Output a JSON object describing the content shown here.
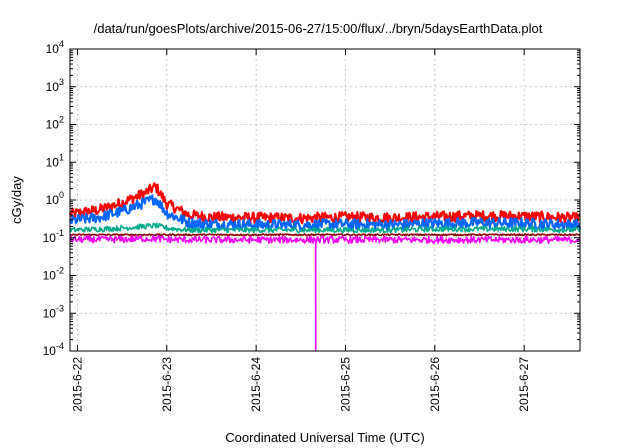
{
  "chart_data": {
    "type": "line",
    "title": "/data/run/goesPlots/archive/2015-06-27/15:00/flux/../bryn/5daysEarthData.plot",
    "xlabel": "Coordinated Universal Time (UTC)",
    "ylabel": "cGy/day",
    "y_scale": "log",
    "ylim": [
      0.0001,
      10000
    ],
    "xlim": [
      "2015-06-21 22:00",
      "2015-06-27 15:00"
    ],
    "x_ticks": [
      "2015-6-22",
      "2015-6-23",
      "2015-6-24",
      "2015-6-25",
      "2015-6-26",
      "2015-6-27"
    ],
    "y_ticks": [
      {
        "base": "10",
        "exp": "-4"
      },
      {
        "base": "10",
        "exp": "-3"
      },
      {
        "base": "10",
        "exp": "-2"
      },
      {
        "base": "10",
        "exp": "-1"
      },
      {
        "base": "10",
        "exp": "0"
      },
      {
        "base": "10",
        "exp": "1"
      },
      {
        "base": "10",
        "exp": "2"
      },
      {
        "base": "10",
        "exp": "3"
      },
      {
        "base": "10",
        "exp": "4"
      }
    ],
    "grid": true,
    "legend": "none",
    "x": [
      "2015-06-21 22:00",
      "2015-06-22 06:00",
      "2015-06-22 12:00",
      "2015-06-22 18:00",
      "2015-06-22 21:00",
      "2015-06-23 00:00",
      "2015-06-23 06:00",
      "2015-06-23 12:00",
      "2015-06-24 00:00",
      "2015-06-24 12:00",
      "2015-06-25 00:00",
      "2015-06-25 12:00",
      "2015-06-26 00:00",
      "2015-06-26 12:00",
      "2015-06-27 00:00",
      "2015-06-27 15:00"
    ],
    "series": [
      {
        "color": "#ff0000",
        "values": [
          0.42,
          0.55,
          0.85,
          1.5,
          2.3,
          0.8,
          0.4,
          0.35,
          0.34,
          0.33,
          0.35,
          0.34,
          0.36,
          0.38,
          0.37,
          0.33
        ]
      },
      {
        "color": "#0066ff",
        "values": [
          0.28,
          0.35,
          0.5,
          0.85,
          1.1,
          0.45,
          0.25,
          0.23,
          0.22,
          0.22,
          0.23,
          0.22,
          0.24,
          0.25,
          0.24,
          0.22
        ]
      },
      {
        "color": "#00aa88",
        "values": [
          0.16,
          0.17,
          0.18,
          0.2,
          0.21,
          0.18,
          0.16,
          0.16,
          0.16,
          0.16,
          0.16,
          0.16,
          0.17,
          0.17,
          0.17,
          0.16
        ]
      },
      {
        "color": "#8b0000",
        "values": [
          0.12,
          0.12,
          0.12,
          0.12,
          0.12,
          0.12,
          0.12,
          0.12,
          0.12,
          0.12,
          0.12,
          0.12,
          0.12,
          0.12,
          0.12,
          0.12
        ]
      },
      {
        "color": "#ff00ff",
        "values": [
          0.09,
          0.09,
          0.09,
          0.095,
          0.095,
          0.09,
          0.088,
          0.088,
          0.088,
          0.088,
          0.088,
          0.088,
          0.088,
          0.088,
          0.088,
          0.088
        ]
      }
    ],
    "annotations": [
      {
        "type": "dropout",
        "series": "#ff00ff",
        "x": "2015-06-24 16:00",
        "value": 0.0001
      }
    ]
  }
}
